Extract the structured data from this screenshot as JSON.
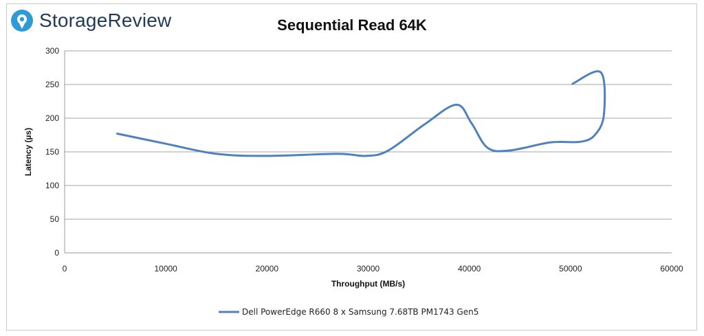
{
  "brand": {
    "name": "StorageReview",
    "logo_icon": "storagereview-logo-icon",
    "color": "#1f3b57",
    "accent": "#2f9bd6"
  },
  "chart_data": {
    "type": "line",
    "title": "Sequential Read 64K",
    "xlabel": "Throughput (MB/s)",
    "ylabel": "Latency (µs)",
    "xlim": [
      0,
      60000
    ],
    "ylim": [
      0,
      300
    ],
    "xticks": [
      0,
      10000,
      20000,
      30000,
      40000,
      50000,
      60000
    ],
    "yticks": [
      0,
      50,
      100,
      150,
      200,
      250,
      300
    ],
    "xtick_labels": [
      "0",
      "10000",
      "20000",
      "30000",
      "40000",
      "50000",
      "60000"
    ],
    "ytick_labels": [
      "0",
      "50",
      "100",
      "150",
      "200",
      "250",
      "300"
    ],
    "grid": true,
    "legend_position": "bottom",
    "series": [
      {
        "name": "Dell PowerEdge R660 8 x Samsung 7.68TB PM1743 Gen5",
        "color": "#4f81bd",
        "points": [
          [
            5200,
            177
          ],
          [
            10000,
            162
          ],
          [
            15000,
            147
          ],
          [
            20000,
            144
          ],
          [
            27000,
            147
          ],
          [
            29800,
            144
          ],
          [
            32000,
            152
          ],
          [
            35500,
            190
          ],
          [
            38700,
            220
          ],
          [
            40200,
            193
          ],
          [
            41800,
            156
          ],
          [
            44000,
            152
          ],
          [
            48000,
            164
          ],
          [
            51000,
            165
          ],
          [
            52400,
            175
          ],
          [
            53300,
            205
          ],
          [
            53000,
            268
          ],
          [
            50200,
            251
          ]
        ]
      }
    ]
  }
}
